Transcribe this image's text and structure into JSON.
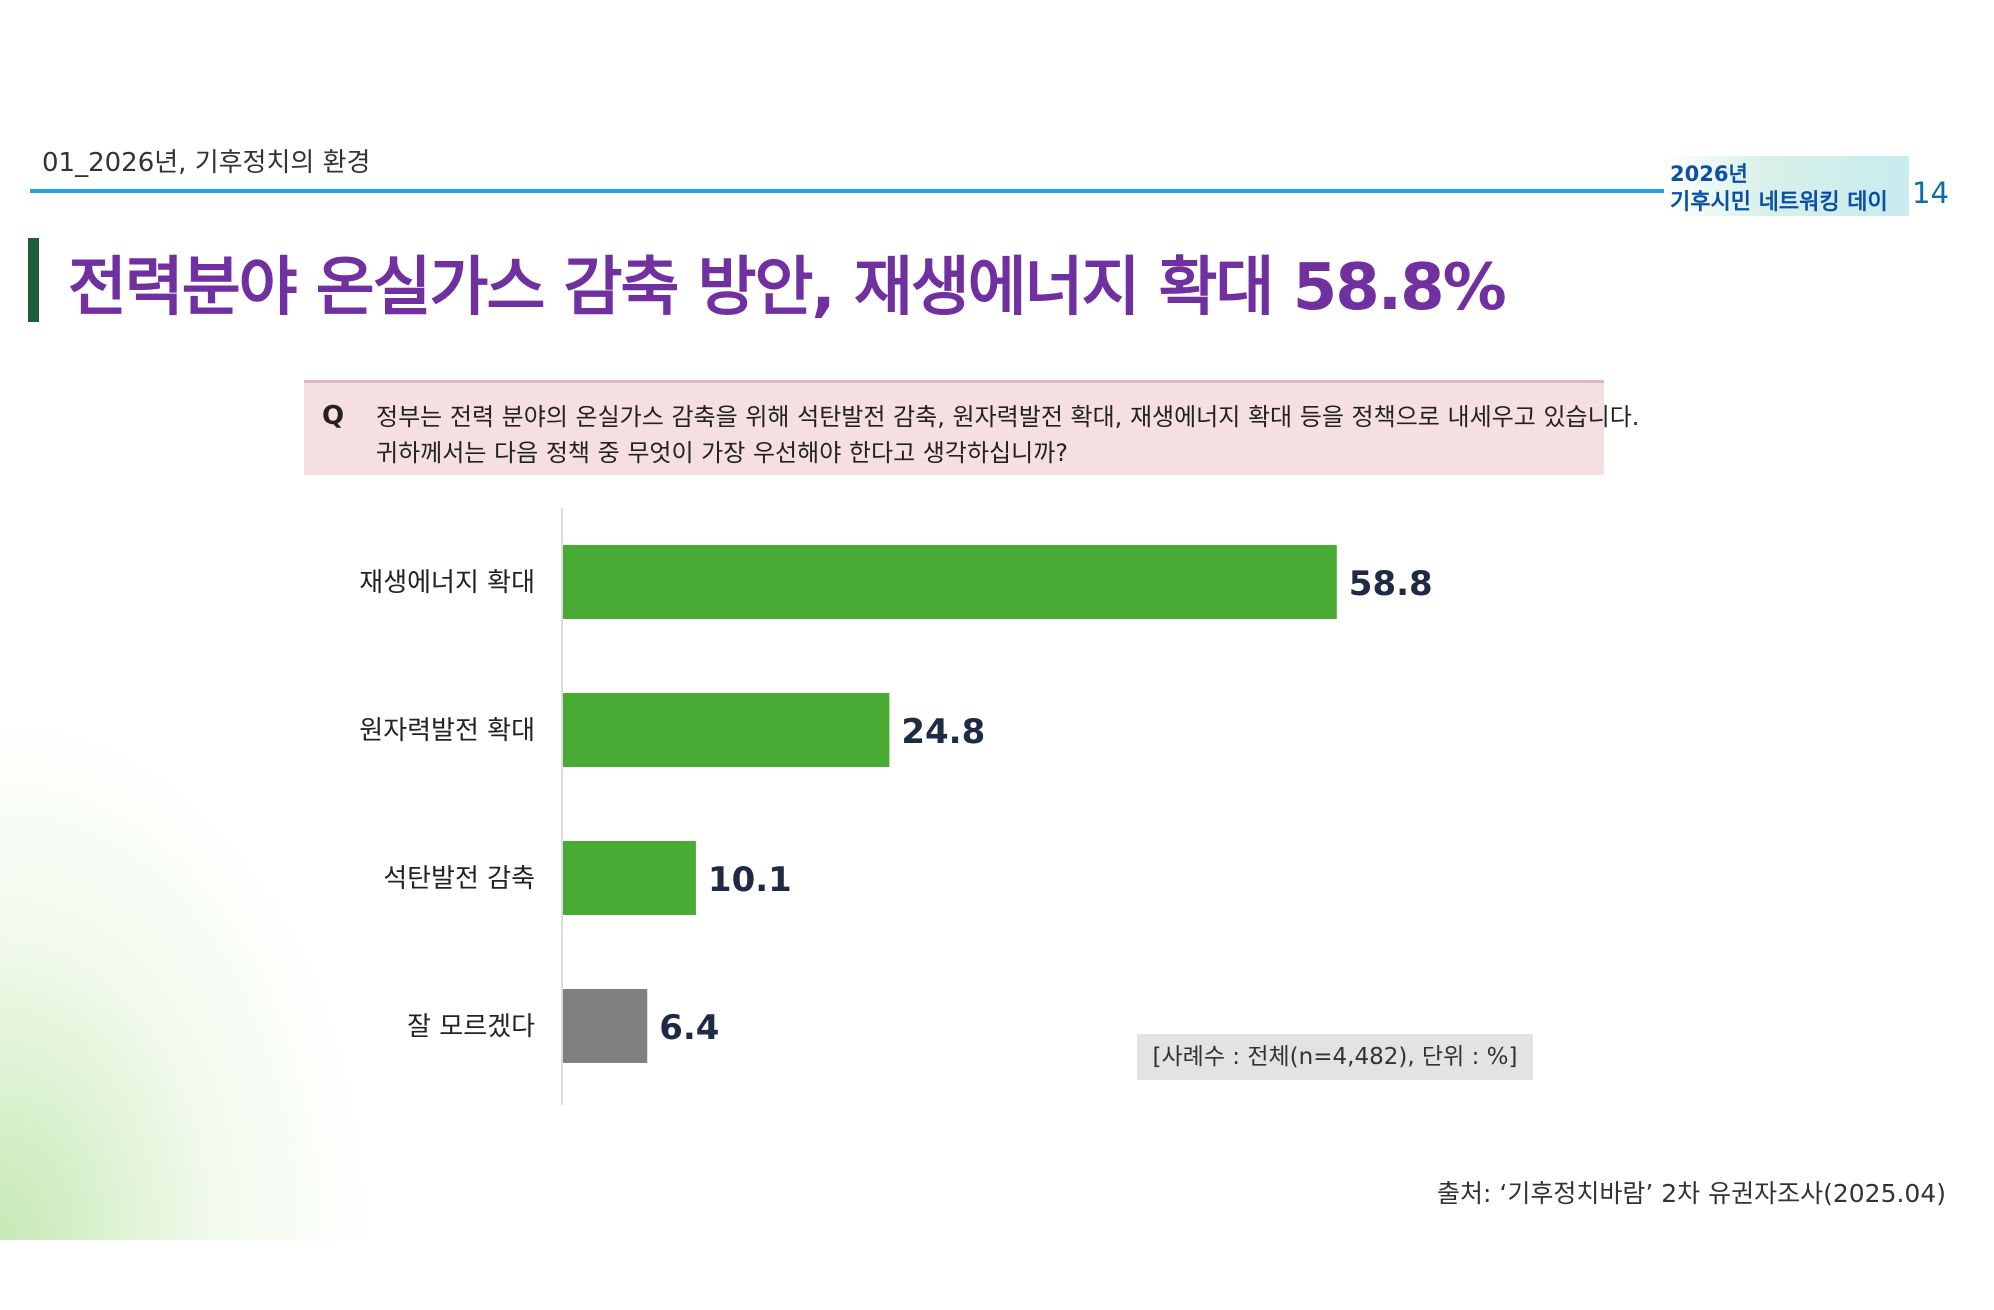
{
  "header": {
    "section": "01_2026년, 기후정치의 환경",
    "logo_line1": "2026년",
    "logo_line2": "기후시민 네트워킹 데이",
    "page_number": "14"
  },
  "title": "전력분야 온실가스 감축 방안, 재생에너지 확대 58.8%",
  "question": {
    "marker": "Q",
    "line1": "정부는 전력 분야의 온실가스 감축을 위해 석탄발전 감축, 원자력발전 확대, 재생에너지 확대 등을 정책으로 내세우고 있습니다.",
    "line2": "귀하께서는 다음 정책 중 무엇이 가장 우선해야 한다고 생각하십니까?"
  },
  "chart_data": {
    "type": "bar",
    "orientation": "horizontal",
    "categories": [
      "재생에너지 확대",
      "원자력발전 확대",
      "석탄발전 감축",
      "잘 모르겠다"
    ],
    "values": [
      58.8,
      24.8,
      10.1,
      6.4
    ],
    "value_labels": [
      "58.8",
      "24.8",
      "10.1",
      "6.4"
    ],
    "colors": [
      "#4aab34",
      "#4aab34",
      "#4aab34",
      "#808080"
    ],
    "xlim": [
      0,
      75
    ],
    "grid": false
  },
  "note": "[사례수 : 전체(n=4,482), 단위 : %]",
  "source": "출처: ‘기후정치바람’ 2차 유권자조사(2025.04)"
}
